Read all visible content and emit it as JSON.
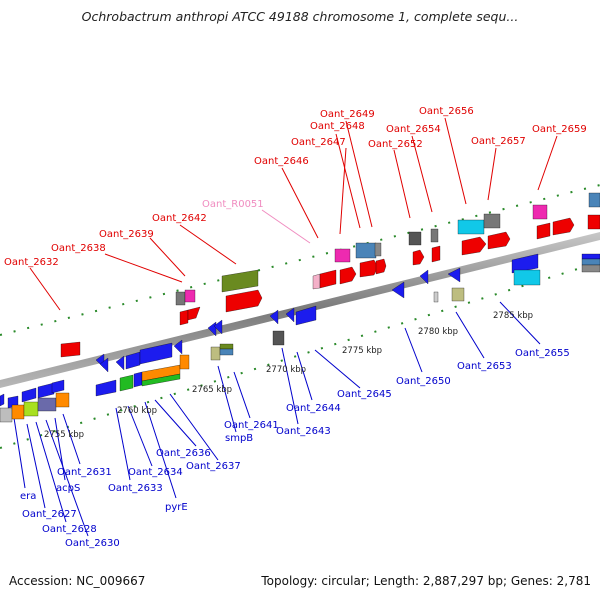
{
  "title": "Ochrobactrum anthropi ATCC 49188 chromosome 1, complete sequ...",
  "accession": "Accession: NC_009667",
  "summary": "Topology: circular; Length: 2,887,297 bp; Genes: 2,781",
  "colors": {
    "top_label": "#e00000",
    "rna_label": "#f08cc0",
    "bottom_label": "#0000cc",
    "backbone": "#8a8a8a",
    "tick": "#2a8a2a"
  },
  "ticks": [
    "2755 kbp",
    "2760 kbp",
    "2765 kbp",
    "2770 kbp",
    "2775 kbp",
    "2780 kbp",
    "2785 kbp"
  ],
  "top_labels": [
    "Oant_2632",
    "Oant_2638",
    "Oant_2639",
    "Oant_2642",
    "Oant_R0051",
    "Oant_2646",
    "Oant_2647",
    "Oant_2648",
    "Oant_2649",
    "Oant_2652",
    "Oant_2654",
    "Oant_2656",
    "Oant_2657",
    "Oant_2659"
  ],
  "bottom_labels": [
    "era",
    "Oant_2627",
    "Oant_2628",
    "Oant_2630",
    "acpS",
    "Oant_2631",
    "Oant_2633",
    "Oant_2634",
    "pyrE",
    "Oant_2636",
    "Oant_2637",
    "smpB",
    "Oant_2641",
    "Oant_2643",
    "Oant_2644",
    "Oant_2645",
    "Oant_2650",
    "Oant_2653",
    "Oant_2655"
  ]
}
